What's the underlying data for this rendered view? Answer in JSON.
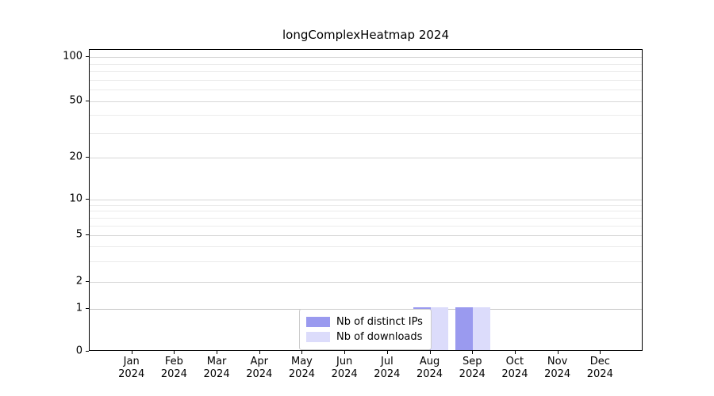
{
  "title": "longComplexHeatmap 2024",
  "chart_data": {
    "type": "bar",
    "categories": [
      "Jan",
      "Feb",
      "Mar",
      "Apr",
      "May",
      "Jun",
      "Jul",
      "Aug",
      "Sep",
      "Oct",
      "Nov",
      "Dec"
    ],
    "year_label": "2024",
    "series": [
      {
        "name": "Nb of distinct IPs",
        "color": "#9a9aef",
        "values": [
          0,
          0,
          0,
          0,
          0,
          0,
          0,
          1,
          1,
          0,
          0,
          0
        ]
      },
      {
        "name": "Nb of downloads",
        "color": "#dcdcfb",
        "values": [
          0,
          0,
          0,
          0,
          0,
          0,
          0,
          1,
          1,
          0,
          0,
          0
        ]
      }
    ],
    "yticks": [
      0,
      1,
      2,
      5,
      10,
      20,
      50,
      100
    ],
    "yscale": "symlog",
    "ylim": [
      0,
      100
    ],
    "xlabel": "",
    "ylabel": "",
    "grid": "horizontal-major-and-minor",
    "legend_position": "bottom-center"
  }
}
